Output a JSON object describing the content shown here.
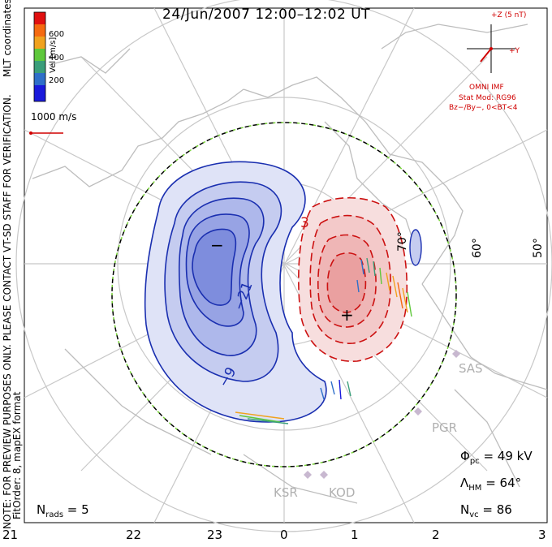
{
  "title": "24/Jun/2007 12:00–12:02 UT",
  "coordinates_label": "MLT coordinates",
  "note": "NOTE: FOR PREVIEW PURPOSES ONLY. PLEASE CONTACT VT-SD STAFF FOR VERIFICATION.",
  "fit_label": "FitOrder: 8, mapEX format",
  "colorbar": {
    "label": "Vel [m/s]",
    "ticks": [
      "600",
      "400",
      "200"
    ],
    "colors": [
      "#1a1adb",
      "#2f6fc9",
      "#3a9e7a",
      "#5fc83c",
      "#f0a21e",
      "#f56a10",
      "#e01010"
    ]
  },
  "vector_scale": "1000 m/s",
  "imf": {
    "z_label": "+Z (5 nT)",
    "y_label": "+Y",
    "source": "OMNI IMF",
    "stat_mod": "Stat Mod: RG96",
    "condition": "Bz−/By−, 0<BT<4"
  },
  "latitude_labels": [
    "70°",
    "60°",
    "50°"
  ],
  "contour_labels": [
    "3",
    "−21",
    "−9"
  ],
  "sites": [
    "SAS",
    "PGR",
    "KSR",
    "KOD"
  ],
  "stats": {
    "phi_pc_label": "Φ",
    "phi_pc_sub": "pc",
    "phi_pc_value": " = 49 kV",
    "lambda_label": "Λ",
    "lambda_sub": "HM",
    "lambda_value": " = 64°",
    "nvc_label": "N",
    "nvc_sub": "vc",
    "nvc_value": " = 86",
    "nrads_label": "N",
    "nrads_sub": "rads",
    "nrads_value": " = 5"
  },
  "mlt_labels": [
    "21",
    "22",
    "23",
    "0",
    "1",
    "2",
    "3"
  ],
  "markers": {
    "min": "−",
    "max": "+"
  }
}
